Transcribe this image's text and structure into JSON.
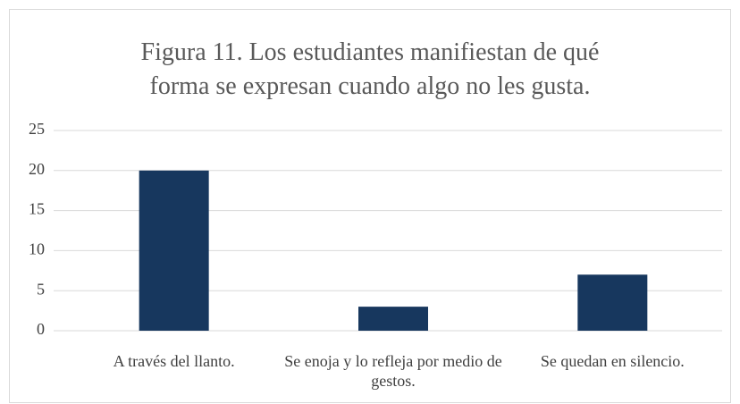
{
  "chart_data": {
    "type": "bar",
    "title": "Figura 11. Los estudiantes manifiestan de qué forma se expresan cuando algo no les gusta.",
    "categories": [
      "A través del llanto.",
      "Se enoja y lo refleja por medio de gestos.",
      "Se quedan en silencio."
    ],
    "values": [
      20,
      3,
      7
    ],
    "color": "#17375e",
    "ylim": [
      0,
      25
    ],
    "yticks": [
      0,
      5,
      10,
      15,
      20,
      25
    ],
    "grid": true
  }
}
